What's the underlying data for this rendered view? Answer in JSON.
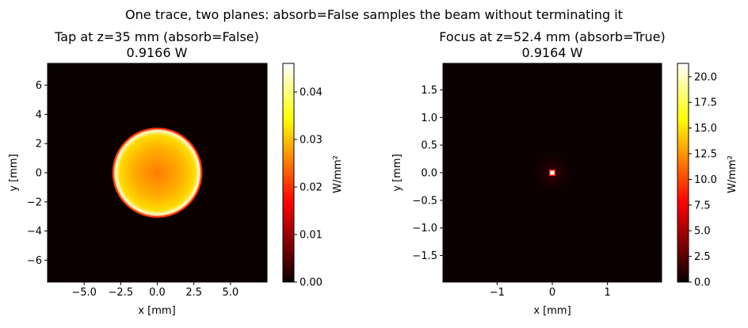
{
  "figure": {
    "suptitle": "One trace, two planes: absorb=False samples the beam without terminating it"
  },
  "chart_data": [
    {
      "type": "heatmap",
      "title_line1": "Tap at z=35 mm (absorb=False)",
      "title_line2": "0.9166 W",
      "xlabel": "x [mm]",
      "ylabel": "y [mm]",
      "xlim": [
        -7.5,
        7.5
      ],
      "ylim": [
        -7.5,
        7.5
      ],
      "xticks": [
        -5.0,
        -2.5,
        0.0,
        2.5,
        5.0
      ],
      "xtick_labels": [
        "−5.0",
        "−2.5",
        "0.0",
        "2.5",
        "5.0"
      ],
      "yticks": [
        -6,
        -4,
        -2,
        0,
        2,
        4,
        6
      ],
      "ytick_labels": [
        "−6",
        "−4",
        "−2",
        "0",
        "2",
        "4",
        "6"
      ],
      "colorbar": {
        "label": "W/mm²",
        "range": [
          0,
          0.046
        ],
        "ticks": [
          0.0,
          0.01,
          0.02,
          0.03,
          0.04
        ],
        "tick_labels": [
          "0.00",
          "0.01",
          "0.02",
          "0.03",
          "0.04"
        ],
        "colormap": "hot"
      },
      "beam": {
        "shape": "uniform-disk",
        "center": [
          0,
          0
        ],
        "radius_mm": 3.0,
        "peak": 0.046,
        "mean": 0.028
      },
      "background": "#000000"
    },
    {
      "type": "heatmap",
      "title_line1": "Focus at z=52.4 mm (absorb=True)",
      "title_line2": "0.9164 W",
      "xlabel": "x [mm]",
      "ylabel": "y [mm]",
      "xlim": [
        -1.98,
        1.98
      ],
      "ylim": [
        -1.98,
        1.98
      ],
      "xticks": [
        -1,
        0,
        1
      ],
      "xtick_labels": [
        "−1",
        "0",
        "1"
      ],
      "yticks": [
        -1.5,
        -1.0,
        -0.5,
        0.0,
        0.5,
        1.0,
        1.5
      ],
      "ytick_labels": [
        "−1.5",
        "−1.0",
        "−0.5",
        "0.0",
        "0.5",
        "1.0",
        "1.5"
      ],
      "colorbar": {
        "label": "W/mm²",
        "range": [
          0,
          21.3
        ],
        "ticks": [
          0.0,
          2.5,
          5.0,
          7.5,
          10.0,
          12.5,
          15.0,
          17.5,
          20.0
        ],
        "tick_labels": [
          "0.0",
          "2.5",
          "5.0",
          "7.5",
          "10.0",
          "12.5",
          "15.0",
          "17.5",
          "20.0"
        ],
        "colormap": "hot"
      },
      "beam": {
        "shape": "focused-spot",
        "center": [
          0,
          0
        ],
        "peak": 21.3
      },
      "background": "#000000"
    }
  ]
}
